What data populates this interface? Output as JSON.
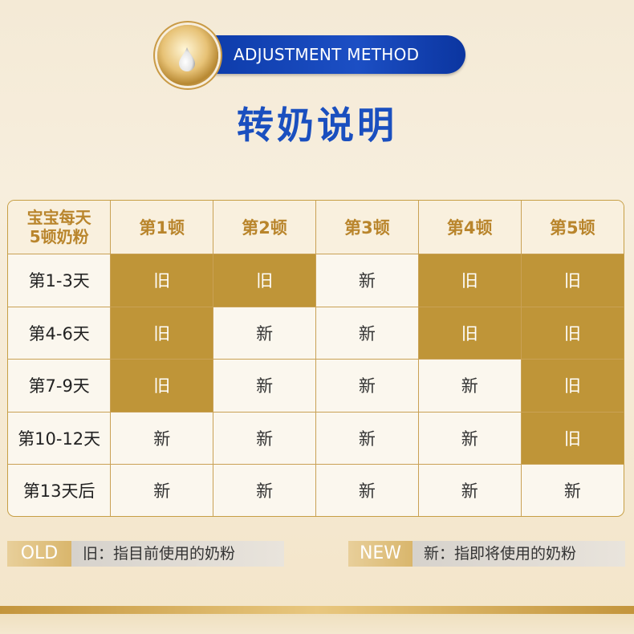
{
  "header": {
    "badge_text": "ADJUSTMENT METHOD",
    "title": "转奶说明"
  },
  "table": {
    "corner_line1": "宝宝每天",
    "corner_line2": "5顿奶粉",
    "columns": [
      "第1顿",
      "第2顿",
      "第3顿",
      "第4顿",
      "第5顿"
    ],
    "rows": [
      {
        "label": "第1-3天",
        "cells": [
          "旧",
          "旧",
          "新",
          "旧",
          "旧"
        ]
      },
      {
        "label": "第4-6天",
        "cells": [
          "旧",
          "新",
          "新",
          "旧",
          "旧"
        ]
      },
      {
        "label": "第7-9天",
        "cells": [
          "旧",
          "新",
          "新",
          "新",
          "旧"
        ]
      },
      {
        "label": "第10-12天",
        "cells": [
          "新",
          "新",
          "新",
          "新",
          "旧"
        ]
      },
      {
        "label": "第13天后",
        "cells": [
          "新",
          "新",
          "新",
          "新",
          "新"
        ]
      }
    ]
  },
  "legend": {
    "old_tag": "OLD",
    "old_desc": "旧：指目前使用的奶粉",
    "new_tag": "NEW",
    "new_desc": "新：指即将使用的奶粉"
  },
  "colors": {
    "accent_blue": "#1a4fbf",
    "gold_cell": "#bf9538",
    "header_gold_text": "#b9852c"
  }
}
